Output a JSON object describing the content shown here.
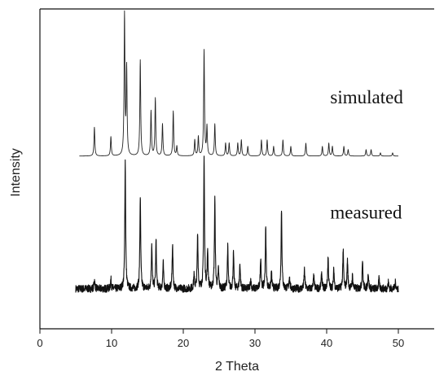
{
  "chart_data": {
    "type": "line",
    "xlabel": "2 Theta",
    "ylabel": "Intensity",
    "xlim": [
      0,
      55
    ],
    "ylim": [
      0,
      1
    ],
    "x_ticks": [
      0,
      10,
      20,
      30,
      40,
      50
    ],
    "y_ticks_shown": false,
    "grid": false,
    "legend": "none",
    "annotations": [
      {
        "text": "simulated",
        "x": 40.5,
        "y": 0.705
      },
      {
        "text": "measured",
        "x": 40.5,
        "y": 0.345
      }
    ],
    "series": [
      {
        "baseline": 0.54,
        "noise": 0.0,
        "x_range": [
          5.5,
          50
        ],
        "color": "#222222",
        "peaks": [
          [
            7.6,
            0.09
          ],
          [
            9.9,
            0.06
          ],
          [
            11.8,
            0.44
          ],
          [
            12.1,
            0.27
          ],
          [
            14.0,
            0.3
          ],
          [
            15.5,
            0.14
          ],
          [
            16.1,
            0.18
          ],
          [
            17.1,
            0.1
          ],
          [
            18.6,
            0.14
          ],
          [
            19.1,
            0.03
          ],
          [
            21.6,
            0.05
          ],
          [
            22.1,
            0.06
          ],
          [
            22.9,
            0.33
          ],
          [
            23.3,
            0.09
          ],
          [
            24.4,
            0.1
          ],
          [
            25.9,
            0.04
          ],
          [
            26.4,
            0.04
          ],
          [
            27.6,
            0.04
          ],
          [
            28.1,
            0.05
          ],
          [
            29.0,
            0.03
          ],
          [
            30.9,
            0.05
          ],
          [
            31.7,
            0.05
          ],
          [
            32.6,
            0.03
          ],
          [
            33.9,
            0.05
          ],
          [
            35.0,
            0.03
          ],
          [
            37.1,
            0.04
          ],
          [
            39.4,
            0.03
          ],
          [
            40.3,
            0.04
          ],
          [
            40.8,
            0.03
          ],
          [
            42.4,
            0.03
          ],
          [
            43.0,
            0.02
          ],
          [
            45.5,
            0.02
          ],
          [
            46.2,
            0.02
          ],
          [
            47.5,
            0.01
          ],
          [
            49.2,
            0.01
          ]
        ]
      },
      {
        "baseline": 0.125,
        "noise": 0.012,
        "x_range": [
          5.0,
          50
        ],
        "color": "#111111",
        "peaks": [
          [
            7.6,
            0.03
          ],
          [
            9.9,
            0.03
          ],
          [
            11.9,
            0.4
          ],
          [
            14.0,
            0.29
          ],
          [
            15.6,
            0.14
          ],
          [
            16.2,
            0.15
          ],
          [
            17.2,
            0.08
          ],
          [
            18.5,
            0.14
          ],
          [
            21.5,
            0.04
          ],
          [
            22.0,
            0.17
          ],
          [
            22.9,
            0.41
          ],
          [
            23.4,
            0.12
          ],
          [
            24.4,
            0.28
          ],
          [
            24.9,
            0.06
          ],
          [
            26.2,
            0.13
          ],
          [
            27.0,
            0.11
          ],
          [
            27.9,
            0.08
          ],
          [
            29.4,
            0.03
          ],
          [
            30.8,
            0.1
          ],
          [
            31.5,
            0.19
          ],
          [
            32.3,
            0.05
          ],
          [
            33.7,
            0.25
          ],
          [
            34.8,
            0.04
          ],
          [
            36.9,
            0.06
          ],
          [
            38.2,
            0.04
          ],
          [
            39.3,
            0.05
          ],
          [
            40.2,
            0.1
          ],
          [
            41.0,
            0.06
          ],
          [
            42.3,
            0.12
          ],
          [
            42.9,
            0.09
          ],
          [
            43.6,
            0.04
          ],
          [
            45.0,
            0.09
          ],
          [
            45.8,
            0.05
          ],
          [
            47.3,
            0.03
          ],
          [
            48.6,
            0.02
          ],
          [
            49.6,
            0.02
          ]
        ]
      }
    ]
  }
}
